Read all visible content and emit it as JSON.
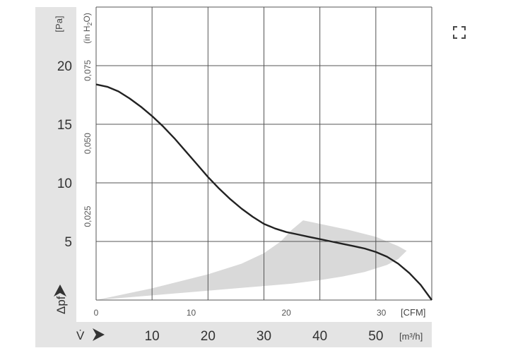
{
  "chart_data": {
    "type": "line",
    "title": "",
    "units": {
      "pa": "[Pa]",
      "inh2o_prefix": "(in H",
      "inh2o_sub": "2",
      "inh2o_suffix": "O)",
      "cfm": "[CFM]",
      "m3h": "[m³/h]"
    },
    "axis_symbols": {
      "pressure": "Δpf",
      "flow": "V̇"
    },
    "y_pa": {
      "min": 0,
      "max": 25,
      "ticks": [
        "5",
        "10",
        "15",
        "20"
      ],
      "tick_values": [
        5,
        10,
        15,
        20
      ]
    },
    "y_inh2o": {
      "ticks": [
        "0,025",
        "0,050",
        "0,075"
      ],
      "tick_values": [
        6.227,
        12.454,
        18.682
      ]
    },
    "x_cfm": {
      "min": 0,
      "max": 35.3,
      "ticks": [
        "0",
        "10",
        "20",
        "30"
      ],
      "tick_values": [
        0,
        10,
        20,
        30
      ]
    },
    "x_m3h": {
      "min": 0,
      "max": 60,
      "ticks": [
        "10",
        "20",
        "30",
        "40",
        "50"
      ],
      "tick_values": [
        10,
        20,
        30,
        40,
        50
      ]
    },
    "grid": true,
    "series": [
      {
        "x_m3h": [
          0,
          2,
          4,
          6,
          8,
          10,
          12,
          14,
          16,
          18,
          20,
          22,
          24,
          26,
          28,
          30,
          32,
          34,
          36,
          38,
          40,
          42,
          44,
          46,
          48,
          50,
          52,
          54,
          56,
          58,
          60
        ],
        "y_pa": [
          18.4,
          18.2,
          17.8,
          17.2,
          16.5,
          15.7,
          14.8,
          13.8,
          12.7,
          11.6,
          10.5,
          9.5,
          8.6,
          7.8,
          7.1,
          6.5,
          6.1,
          5.8,
          5.6,
          5.4,
          5.2,
          5.0,
          4.8,
          4.6,
          4.4,
          4.1,
          3.7,
          3.1,
          2.3,
          1.3,
          0
        ]
      }
    ],
    "operating_range": {
      "upper_x_m3h": [
        0,
        10,
        20,
        26,
        30,
        33,
        35,
        37,
        39,
        41,
        45,
        50,
        54,
        55.5
      ],
      "upper_y_pa": [
        0,
        1.0,
        2.2,
        3.1,
        4.0,
        5.0,
        6.0,
        6.8,
        6.6,
        6.4,
        6.0,
        5.4,
        4.6,
        4.2
      ],
      "lower_x_m3h": [
        55.5,
        54,
        52,
        48,
        44,
        40,
        35,
        30,
        25,
        20,
        10,
        0
      ],
      "lower_y_pa": [
        4.2,
        3.5,
        3.0,
        2.4,
        2.0,
        1.7,
        1.4,
        1.2,
        1.0,
        0.8,
        0.4,
        0
      ]
    }
  }
}
